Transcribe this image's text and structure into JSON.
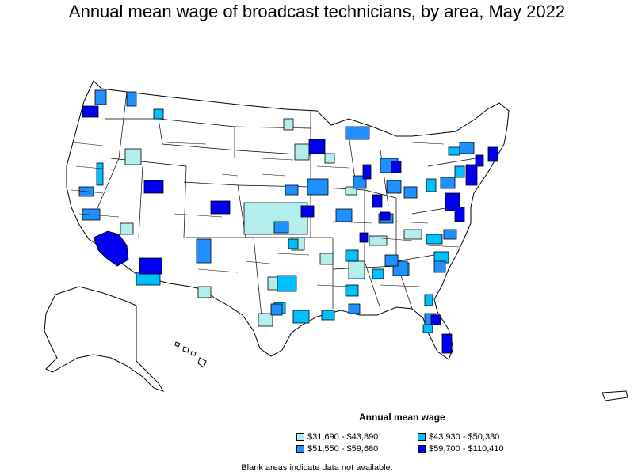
{
  "title": "Annual mean wage of broadcast technicians, by area, May 2022",
  "legend": {
    "title": "Annual mean wage",
    "items": [
      {
        "label": "$31,690 - $43,890",
        "color": "#b3eeee"
      },
      {
        "label": "$43,930 - $50,330",
        "color": "#00bfff"
      },
      {
        "label": "$51,550 - $59,680",
        "color": "#1e90ff"
      },
      {
        "label": "$59,700 - $110,410",
        "color": "#0000ee"
      }
    ]
  },
  "footnote": "Blank areas indicate data not available.",
  "colors": {
    "stroke": "#000000",
    "blank": "#ffffff"
  }
}
